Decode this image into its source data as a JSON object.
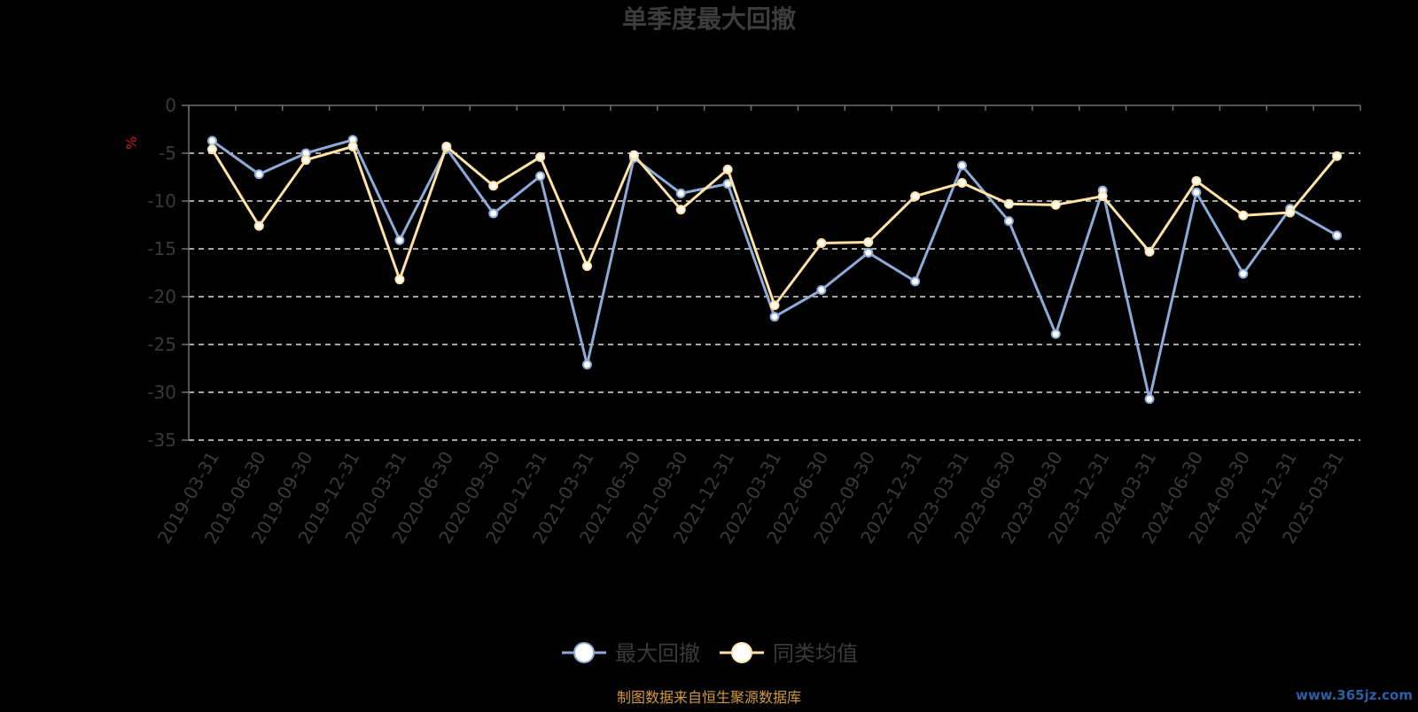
{
  "chart_data": {
    "type": "line",
    "title": "单季度最大回撤",
    "ylabel": "%",
    "xlabel": "",
    "ylim": [
      -35,
      0
    ],
    "yticks": [
      "0",
      "-5",
      "-10",
      "-15",
      "-20",
      "-25",
      "-30",
      "-35"
    ],
    "grid": true,
    "legend_position": "bottom",
    "categories": [
      "2019-03-31",
      "2019-06-30",
      "2019-09-30",
      "2019-12-31",
      "2020-03-31",
      "2020-06-30",
      "2020-09-30",
      "2020-12-31",
      "2021-03-31",
      "2021-06-30",
      "2021-09-30",
      "2021-12-31",
      "2022-03-31",
      "2022-06-30",
      "2022-09-30",
      "2022-12-31",
      "2023-03-31",
      "2023-06-30",
      "2023-09-30",
      "2023-12-31",
      "2024-03-31",
      "2024-06-30",
      "2024-09-30",
      "2024-12-31",
      "2025-03-31"
    ],
    "series": [
      {
        "name": "最大回撤",
        "color": "#8eabd8",
        "values": [
          -3.7,
          -7.2,
          -5.0,
          -3.6,
          -14.1,
          -4.5,
          -11.3,
          -7.4,
          -27.1,
          -5.5,
          -9.2,
          -8.2,
          -22.1,
          -19.3,
          -15.4,
          -18.4,
          -6.3,
          -12.1,
          -23.9,
          -8.9,
          -30.7,
          -9.1,
          -17.6,
          -10.8,
          -13.6
        ]
      },
      {
        "name": "同类均值",
        "color": "#ffe3a6",
        "values": [
          -4.6,
          -12.6,
          -5.7,
          -4.3,
          -18.2,
          -4.3,
          -8.4,
          -5.4,
          -16.8,
          -5.2,
          -10.9,
          -6.7,
          -20.9,
          -14.4,
          -14.3,
          -9.5,
          -8.1,
          -10.3,
          -10.4,
          -9.5,
          -15.3,
          -7.9,
          -11.5,
          -11.2,
          -5.3
        ]
      }
    ]
  },
  "source_text": "制图数据来自恒生聚源数据库",
  "watermark_text": "www.365jz.com",
  "colors": {
    "background": "#000000",
    "axis": "#6e6e6e",
    "gridline": "#dddddd",
    "tick_text": "#3a3a3a",
    "ylabel": "#c81e1e",
    "source": "#d49a3a"
  }
}
